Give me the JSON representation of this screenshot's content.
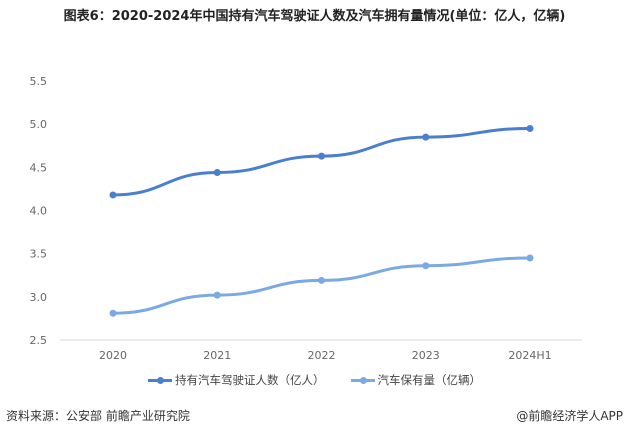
{
  "header": {
    "title": "图表6：2020-2024年中国持有汽车驾驶证人数及汽车拥有量情况(单位：亿人，亿辆)"
  },
  "chart_data": {
    "type": "line",
    "title": "图表6：2020-2024年中国持有汽车驾驶证人数及汽车拥有量情况(单位：亿人，亿辆)",
    "categories": [
      "2020",
      "2021",
      "2022",
      "2023",
      "2024H1"
    ],
    "series": [
      {
        "name": "持有汽车驾驶证人数（亿人）",
        "values": [
          4.18,
          4.44,
          4.63,
          4.85,
          4.95
        ],
        "color": "#4a7fcf"
      },
      {
        "name": "汽车保有量（亿辆）",
        "values": [
          2.81,
          3.02,
          3.19,
          3.36,
          3.45
        ],
        "color": "#7ba9e3"
      }
    ],
    "ylim": [
      2.5,
      5.5
    ],
    "yticks": [
      "2.5",
      "3.0",
      "3.5",
      "4.0",
      "4.5",
      "5.0",
      "5.5"
    ],
    "grid": false,
    "legend": "bottom"
  },
  "footer": {
    "source": "资料来源：公安部 前瞻产业研究院",
    "brand": "@前瞻经济学人APP"
  }
}
